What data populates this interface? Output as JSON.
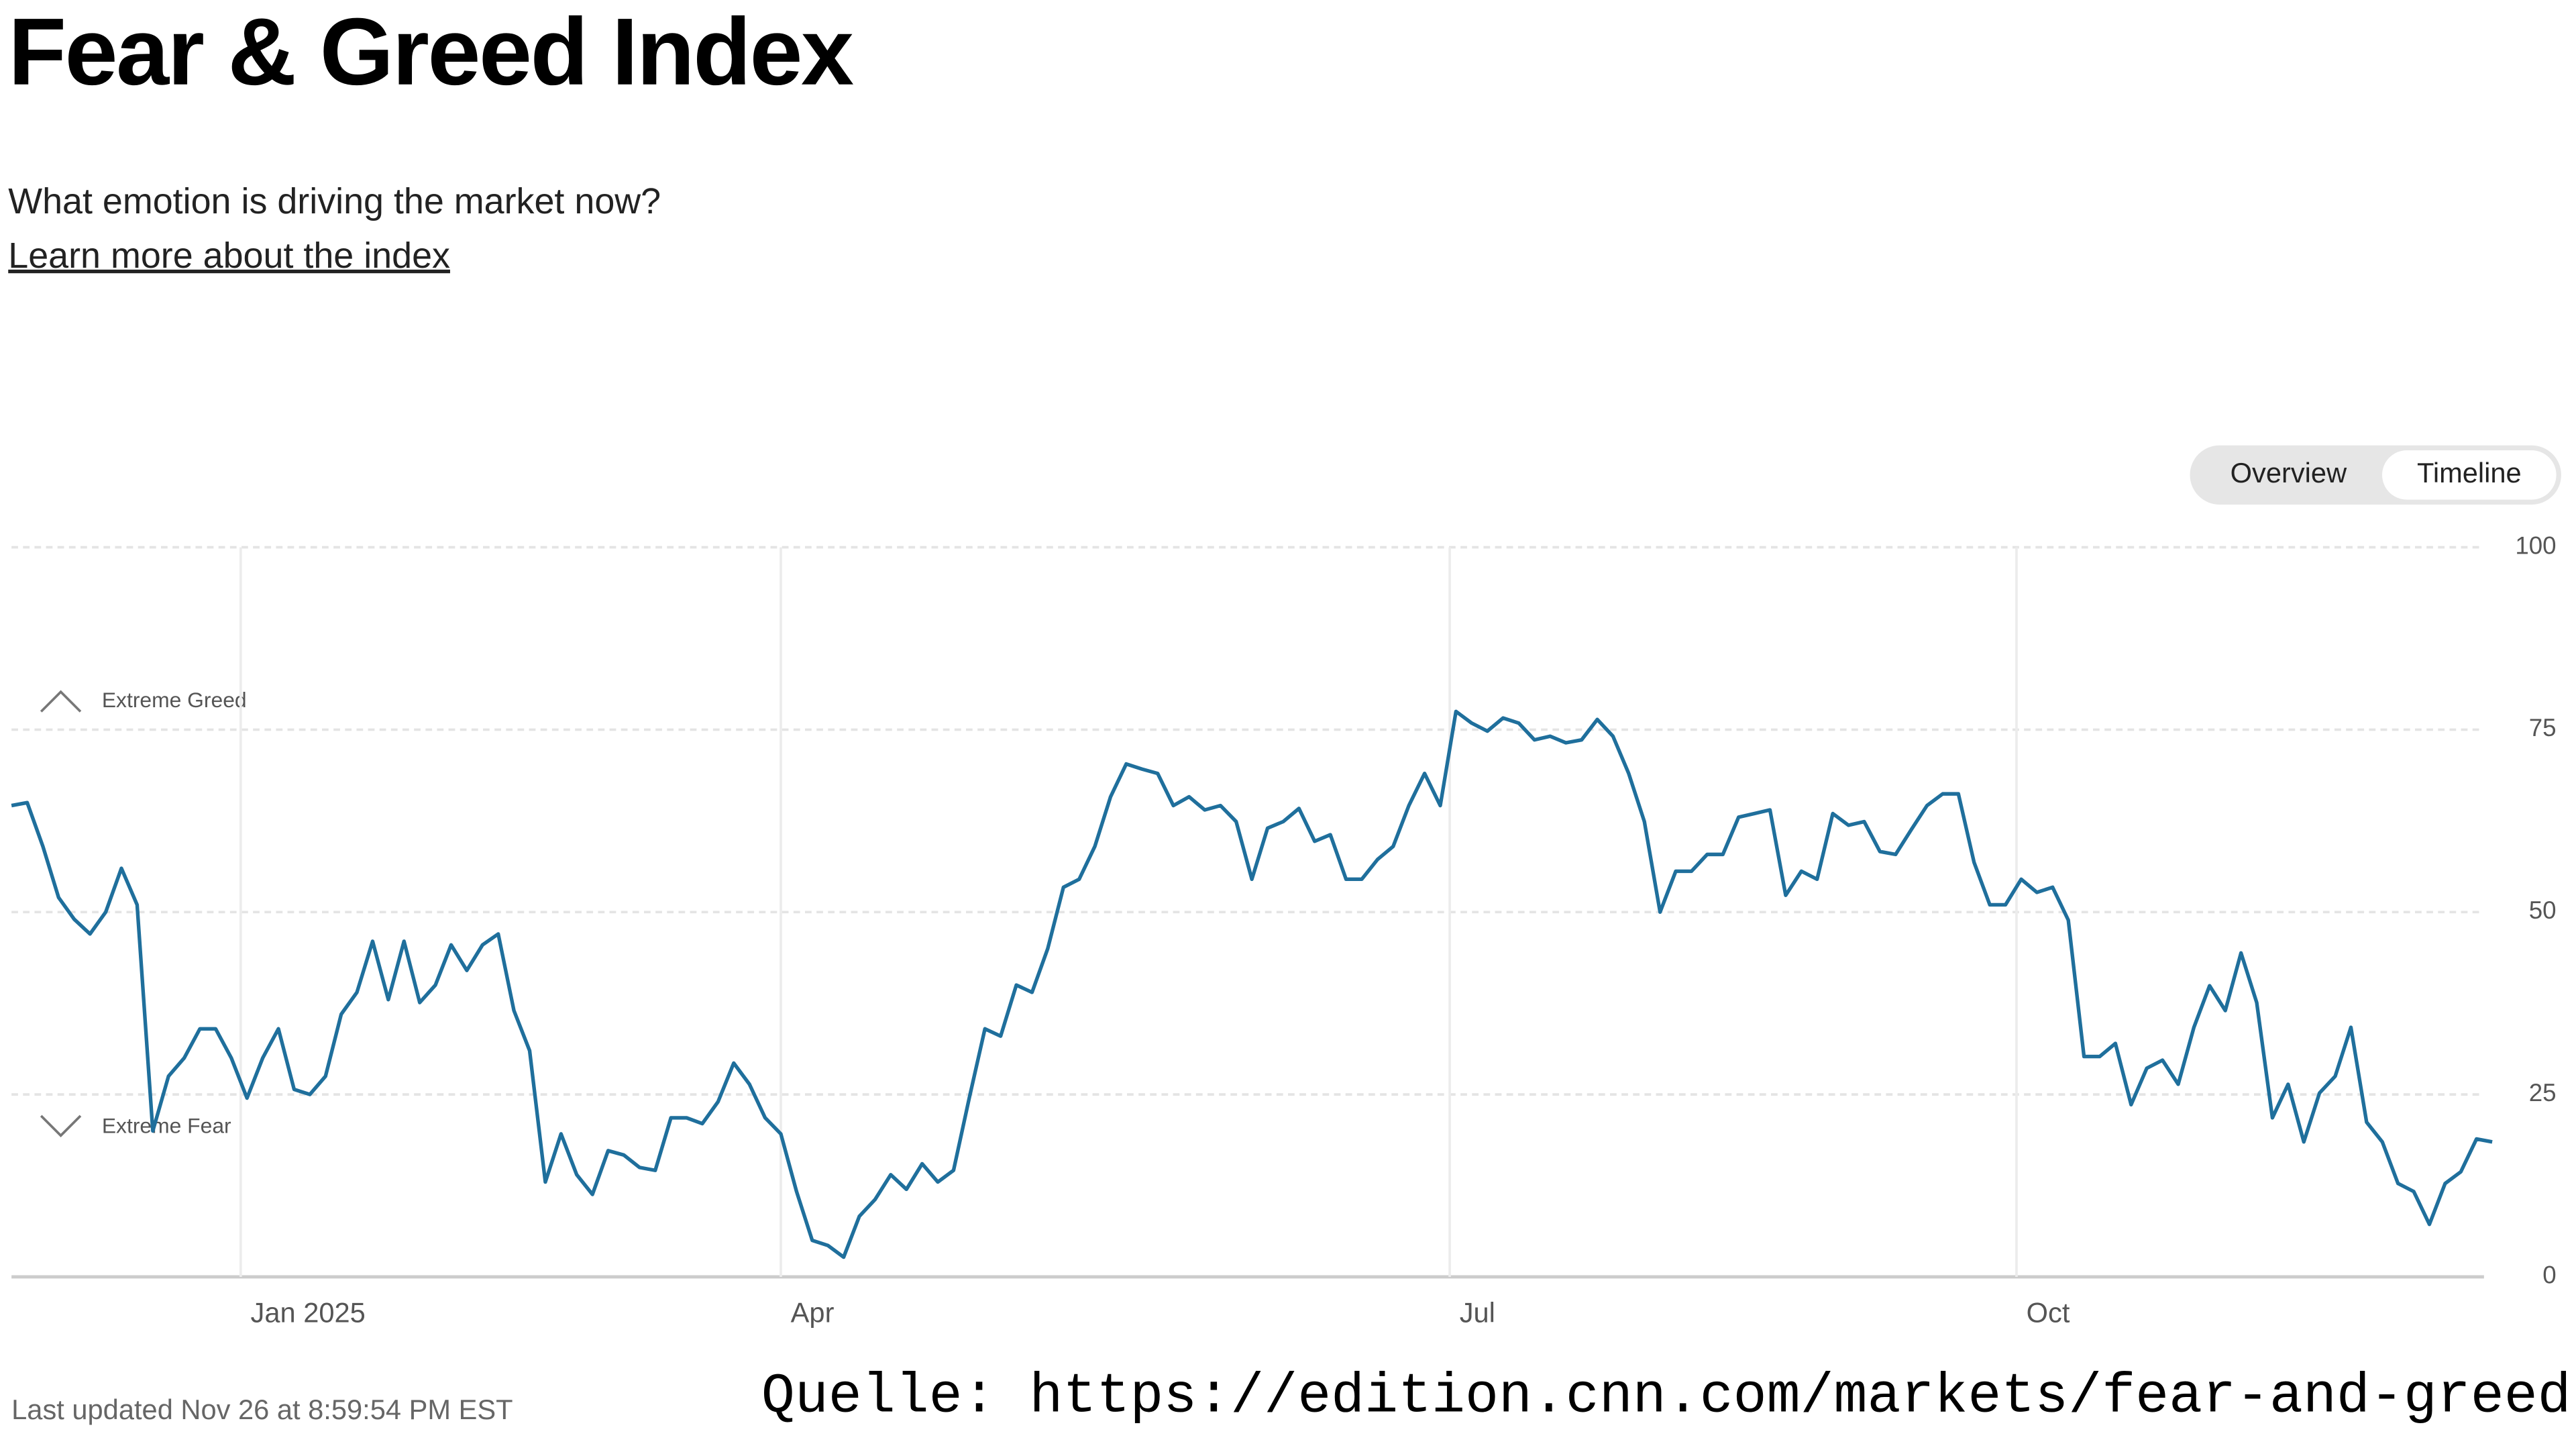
{
  "header": {
    "title": "Fear & Greed Index",
    "subtitle": "What emotion is driving the market now?",
    "link": "Learn more about the index"
  },
  "toggle": [
    "Overview",
    "Timeline"
  ],
  "footer": {
    "updated": "Last updated Nov 26 at 8:59:54 PM EST",
    "source": "Quelle: https://edition.cnn.com/markets/fear-and-greed"
  },
  "chart_data": {
    "type": "line",
    "color": "#1f6f9c",
    "grid": true,
    "annotations": [
      "Extreme Greed",
      "Extreme Fear"
    ],
    "xlim": [
      0,
      158
    ],
    "xticks": [
      {
        "value": 14.6,
        "label": "Jan 2025"
      },
      {
        "value": 49,
        "label": "Apr"
      },
      {
        "value": 91.6,
        "label": "Jul"
      },
      {
        "value": 127.7,
        "label": "Oct"
      }
    ],
    "ylim": [
      0,
      100
    ],
    "yticks": [
      0,
      25,
      50,
      75,
      100
    ],
    "values": [
      64.6,
      65,
      59,
      52,
      49,
      47,
      50,
      56,
      51,
      20,
      27.5,
      30,
      34,
      34,
      30,
      24.5,
      30,
      34,
      25.7,
      25,
      27.5,
      36,
      39,
      46,
      38,
      46,
      37.6,
      40,
      45.5,
      42,
      45.5,
      47,
      36.5,
      31,
      13,
      19.6,
      14,
      11.3,
      17.3,
      16.7,
      15,
      14.6,
      21.8,
      21.8,
      21,
      24,
      29.3,
      26.4,
      21.8,
      19.6,
      11.7,
      5,
      4.3,
      2.7,
      8.3,
      10.6,
      14,
      12,
      15.5,
      13,
      14.6,
      24.5,
      34,
      33,
      40,
      39,
      45,
      53.4,
      54.5,
      59,
      65.8,
      70.3,
      69.6,
      69,
      64.6,
      65.8,
      64,
      64.6,
      62.4,
      54.5,
      61.5,
      62.4,
      64.2,
      59.7,
      60.6,
      54.5,
      54.5,
      57.2,
      59,
      64.6,
      69,
      64.6,
      77.5,
      75.9,
      74.8,
      76.6,
      75.9,
      73.6,
      74.1,
      73.2,
      73.6,
      76.4,
      74.1,
      69,
      62.4,
      50,
      55.6,
      55.6,
      57.9,
      57.9,
      63,
      63.5,
      64,
      52.3,
      55.6,
      54.5,
      63.5,
      61.9,
      62.4,
      58.3,
      57.9,
      61.3,
      64.6,
      66.2,
      66.2,
      56.8,
      51,
      51,
      54.5,
      52.7,
      53.4,
      48.9,
      30.2,
      30.2,
      32,
      23.6,
      28.6,
      29.7,
      26.4,
      34.2,
      39.9,
      36.5,
      44.4,
      37.6,
      21.8,
      26.4,
      18.5,
      25.2,
      27.5,
      34.2,
      21.2,
      18.5,
      12.8,
      11.7,
      7.2,
      12.8,
      14.4,
      18.9,
      18.5
    ]
  }
}
